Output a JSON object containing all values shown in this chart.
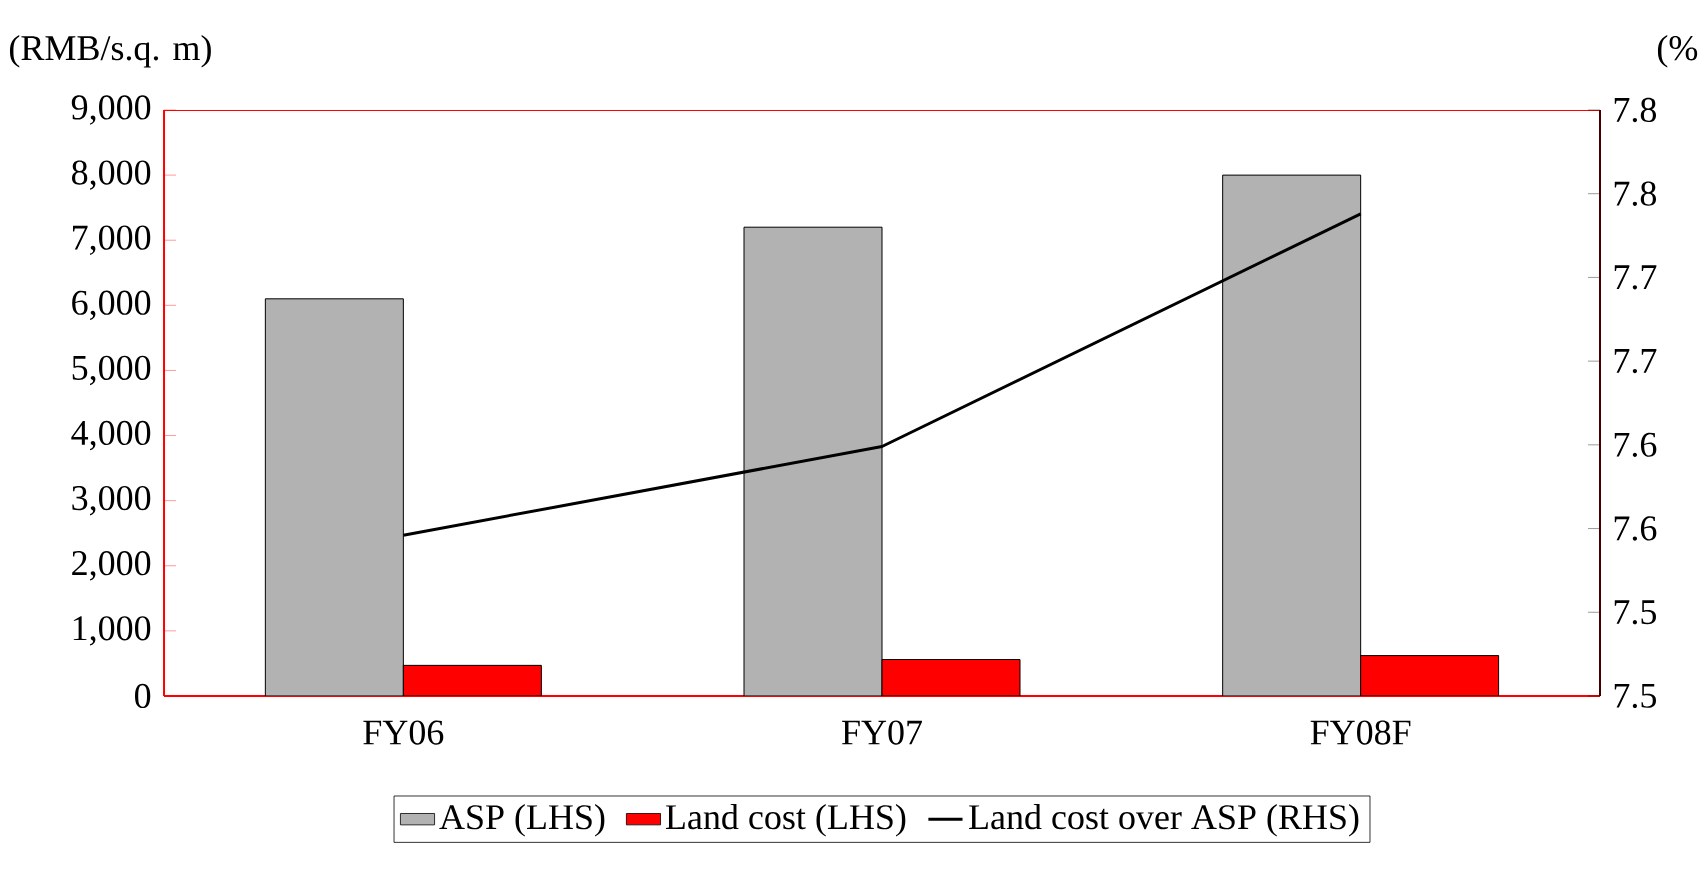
{
  "chart_data": {
    "type": "bar",
    "ylabel": "(RMB/s.q. m)",
    "y2label": "(%",
    "categories": [
      "FY06",
      "FY07",
      "FY08F"
    ],
    "series": [
      {
        "name": "ASP (LHS)",
        "color": "#b2b2b2",
        "values": [
          6100,
          7200,
          8000
        ]
      },
      {
        "name": "Land cost (LHS)",
        "color": "#ff0000",
        "values": [
          470,
          560,
          620
        ]
      },
      {
        "name": "Land cost over ASP (RHS)",
        "color": "#000000",
        "type": "line",
        "axis": "y2",
        "values": [
          7.546,
          7.599,
          7.738
        ]
      }
    ],
    "ylim": [
      0,
      9000
    ],
    "yticks": [
      {
        "value": 0,
        "label": "0"
      },
      {
        "value": 1000,
        "label": "1,000"
      },
      {
        "value": 2000,
        "label": "2,000"
      },
      {
        "value": 3000,
        "label": "3,000"
      },
      {
        "value": 4000,
        "label": "4,000"
      },
      {
        "value": 5000,
        "label": "5,000"
      },
      {
        "value": 6000,
        "label": "6,000"
      },
      {
        "value": 7000,
        "label": "7,000"
      },
      {
        "value": 8000,
        "label": "8,000"
      },
      {
        "value": 9000,
        "label": "9,000"
      }
    ],
    "y2lim": [
      7.45,
      7.8
    ],
    "y2ticks": [
      {
        "value": 7.45,
        "label": "7.5"
      },
      {
        "value": 7.5,
        "label": "7.5"
      },
      {
        "value": 7.55,
        "label": "7.6"
      },
      {
        "value": 7.6,
        "label": "7.6"
      },
      {
        "value": 7.65,
        "label": "7.7"
      },
      {
        "value": 7.7,
        "label": "7.7"
      },
      {
        "value": 7.75,
        "label": "7.8"
      },
      {
        "value": 7.8,
        "label": "7.8"
      }
    ],
    "legend": "bottom",
    "marker": "none"
  }
}
